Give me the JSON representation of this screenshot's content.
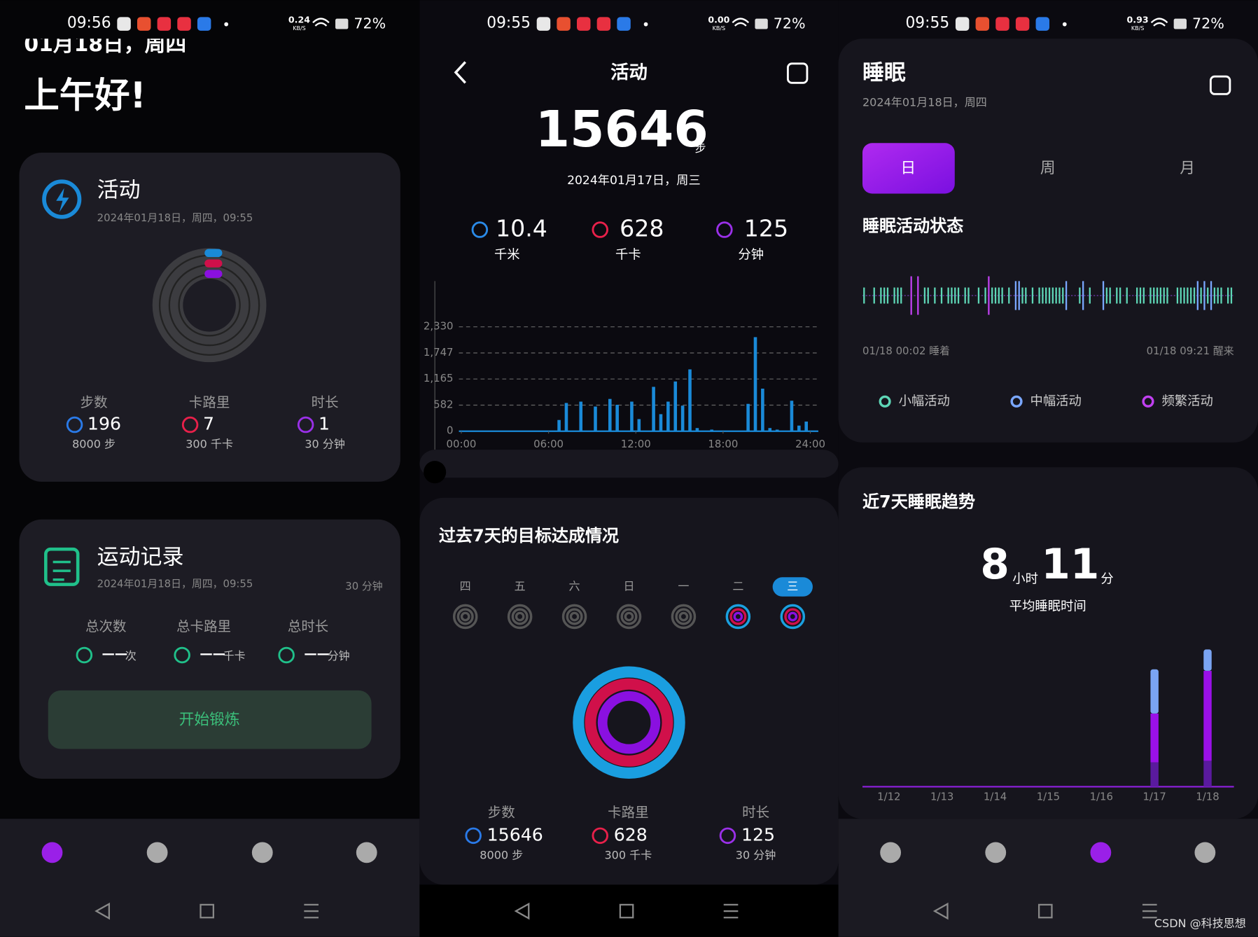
{
  "status_bars": [
    {
      "time": "09:56",
      "speed": "0.24",
      "speed_unit": "KB/S",
      "battery": "72%"
    },
    {
      "time": "09:55",
      "speed": "0.00",
      "speed_unit": "KB/S",
      "battery": "72%"
    },
    {
      "time": "09:55",
      "speed": "0.93",
      "speed_unit": "KB/S",
      "battery": "72%"
    }
  ],
  "home": {
    "date": "01月18日，周四",
    "greeting": "上午好!",
    "activity": {
      "title": "活动",
      "datetime": "2024年01月18日，周四，09:55",
      "stats": [
        {
          "label": "步数",
          "value": "196",
          "goal": "8000 步"
        },
        {
          "label": "卡路里",
          "value": "7",
          "goal": "300 千卡"
        },
        {
          "label": "时长",
          "value": "1",
          "goal": "30 分钟"
        }
      ]
    },
    "records": {
      "title": "运动记录",
      "datetime": "2024年01月18日，周四，09:55",
      "duration": "30 分钟",
      "stats": [
        {
          "label": "总次数",
          "value": "——",
          "unit": "次"
        },
        {
          "label": "总卡路里",
          "value": "——",
          "unit": "千卡"
        },
        {
          "label": "总时长",
          "value": "——",
          "unit": "分钟"
        }
      ],
      "button": "开始锻炼"
    }
  },
  "activity": {
    "title": "活动",
    "steps": "15646",
    "steps_unit": "步",
    "date": "2024年01月17日，周三",
    "metrics": [
      {
        "value": "10.4",
        "unit": "千米"
      },
      {
        "value": "628",
        "unit": "千卡"
      },
      {
        "value": "125",
        "unit": "分钟"
      }
    ],
    "chart": {
      "type": "bar",
      "color": "#1a8ad8",
      "x": [
        6.5,
        7,
        8,
        9,
        10,
        10.5,
        11.5,
        12,
        13,
        13.5,
        14,
        14.5,
        15,
        15.5,
        16,
        17,
        19.5,
        20,
        20.5,
        21,
        21.5,
        22.5,
        23,
        23.5
      ],
      "values": [
        250,
        630,
        660,
        550,
        720,
        590,
        660,
        270,
        990,
        380,
        660,
        1110,
        570,
        1380,
        70,
        35,
        610,
        2100,
        950,
        70,
        35,
        680,
        125,
        215
      ],
      "xlim": [
        0,
        24
      ],
      "xticks": [
        {
          "value": 0,
          "label": "00:00"
        },
        {
          "value": 6,
          "label": "06:00"
        },
        {
          "value": 12,
          "label": "12:00"
        },
        {
          "value": 18,
          "label": "18:00"
        },
        {
          "value": 24,
          "label": "24:00"
        }
      ],
      "ylim": [
        0,
        2330
      ],
      "yticks": [
        0,
        582,
        {
          "value": 1165,
          "label": "1,165"
        },
        {
          "value": 1747,
          "label": "1,747"
        },
        {
          "value": 2330,
          "label": "2,330"
        }
      ],
      "grid": true
    },
    "goals": {
      "title": "过去7天的目标达成情况",
      "days": [
        "四",
        "五",
        "六",
        "日",
        "一",
        "二",
        "三"
      ],
      "stats": [
        {
          "label": "步数",
          "value": "15646",
          "goal": "8000 步"
        },
        {
          "label": "卡路里",
          "value": "628",
          "goal": "300 千卡"
        },
        {
          "label": "时长",
          "value": "125",
          "goal": "30 分钟"
        }
      ]
    }
  },
  "sleep": {
    "title": "睡眠",
    "date": "2024年01月18日，周四",
    "tabs": [
      "日",
      "周",
      "月"
    ],
    "state_title": "睡眠活动状态",
    "start": "01/18 00:02 睡着",
    "end": "01/18 09:21 醒来",
    "legend": [
      "小幅活动",
      "中幅活动",
      "频繁活动"
    ],
    "trend": {
      "title": "近7天睡眠趋势",
      "hours": "8",
      "hours_unit": "小时",
      "minutes": "11",
      "minutes_unit": "分",
      "avg_label": "平均睡眠时间",
      "type": "bar",
      "categories": [
        "1/12",
        "1/13",
        "1/14",
        "1/15",
        "1/16",
        "1/17",
        "1/18"
      ],
      "ylim": [
        0,
        10
      ],
      "series": [
        {
          "color": "#5a1a9e",
          "values": [
            null,
            null,
            null,
            null,
            null,
            1.6,
            1.7
          ]
        },
        {
          "color": "#9a10e8",
          "values": [
            null,
            null,
            null,
            null,
            null,
            3.2,
            5.9
          ]
        },
        {
          "color": "#7aa4f2",
          "values": [
            null,
            null,
            null,
            null,
            null,
            2.9,
            1.4
          ]
        }
      ]
    }
  },
  "watermark": "CSDN @科技思想"
}
